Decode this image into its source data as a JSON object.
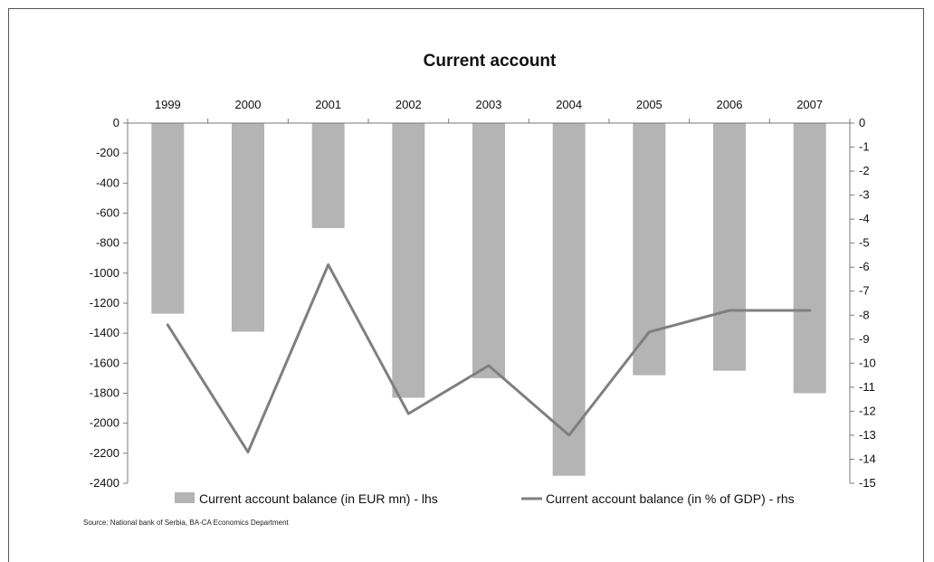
{
  "chart_data": {
    "type": "bar",
    "title": "Current account",
    "categories": [
      "1999",
      "2000",
      "2001",
      "2002",
      "2003",
      "2004",
      "2005",
      "2006",
      "2007"
    ],
    "series": [
      {
        "name": "Current account balance (in EUR mn) - lhs",
        "type": "bar",
        "axis": "left",
        "color": "#b4b4b4",
        "values": [
          -1270,
          -1390,
          -700,
          -1830,
          -1700,
          -2350,
          -1680,
          -1650,
          -1800
        ]
      },
      {
        "name": "Current account balance (in % of GDP) - rhs",
        "type": "line",
        "axis": "right",
        "color": "#7f7f7f",
        "values": [
          -8.4,
          -13.7,
          -5.9,
          -12.1,
          -10.1,
          -13.0,
          -8.7,
          -7.8,
          -7.8
        ]
      }
    ],
    "y_left": {
      "ylim": [
        -2400,
        0
      ],
      "ticks": [
        0,
        -200,
        -400,
        -600,
        -800,
        -1000,
        -1200,
        -1400,
        -1600,
        -1800,
        -2000,
        -2200,
        -2400
      ]
    },
    "y_right": {
      "ylim": [
        -15,
        0
      ],
      "ticks": [
        0,
        -1,
        -2,
        -3,
        -4,
        -5,
        -6,
        -7,
        -8,
        -9,
        -10,
        -11,
        -12,
        -13,
        -14,
        -15
      ]
    },
    "x_axis_position": "top",
    "grid": false,
    "legend": "bottom",
    "source": "Source: National bank of Serbia, BA-CA Economics Department"
  }
}
